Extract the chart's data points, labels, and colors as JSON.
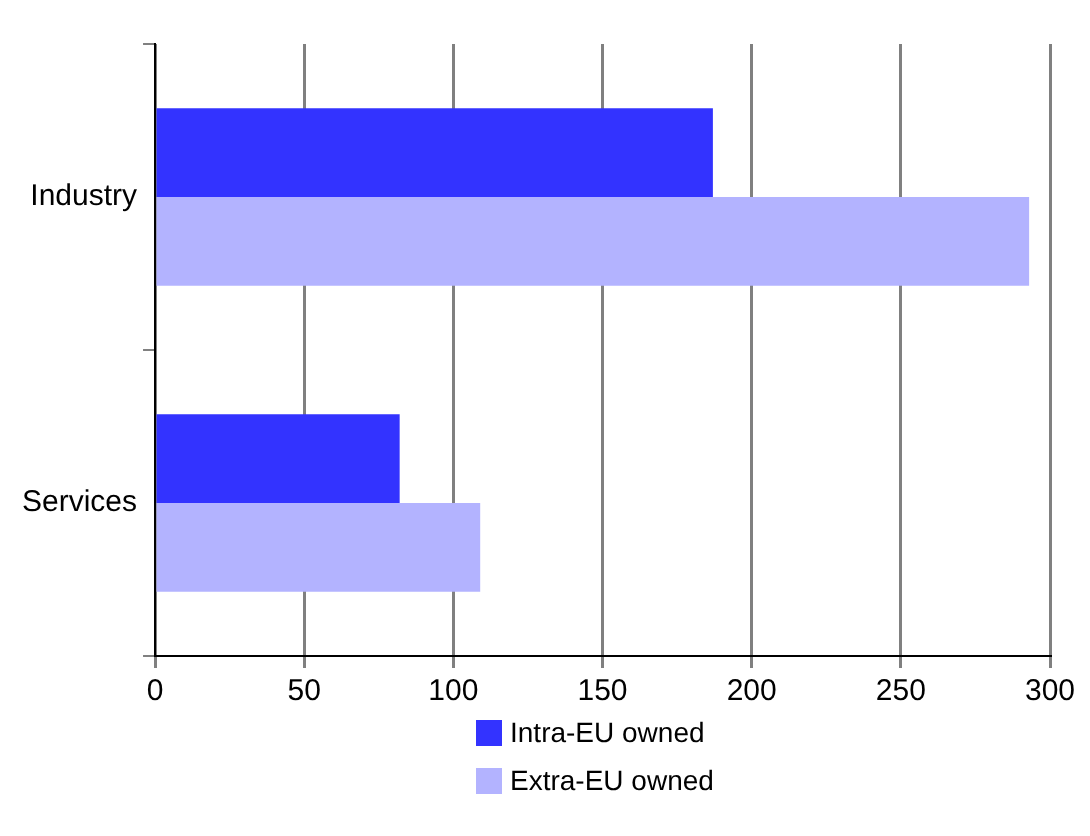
{
  "chart_data": {
    "type": "bar",
    "orientation": "horizontal",
    "categories": [
      "Industry",
      "Services"
    ],
    "series": [
      {
        "name": "Intra-EU owned",
        "color": "#3333ff",
        "values": [
          187,
          82
        ]
      },
      {
        "name": "Extra-EU owned",
        "color": "#b3b3ff",
        "values": [
          293,
          109
        ]
      }
    ],
    "xlim": [
      0,
      300
    ],
    "xticks": [
      0,
      50,
      100,
      150,
      200,
      250,
      300
    ],
    "grid": "x",
    "legend": "bottom"
  }
}
